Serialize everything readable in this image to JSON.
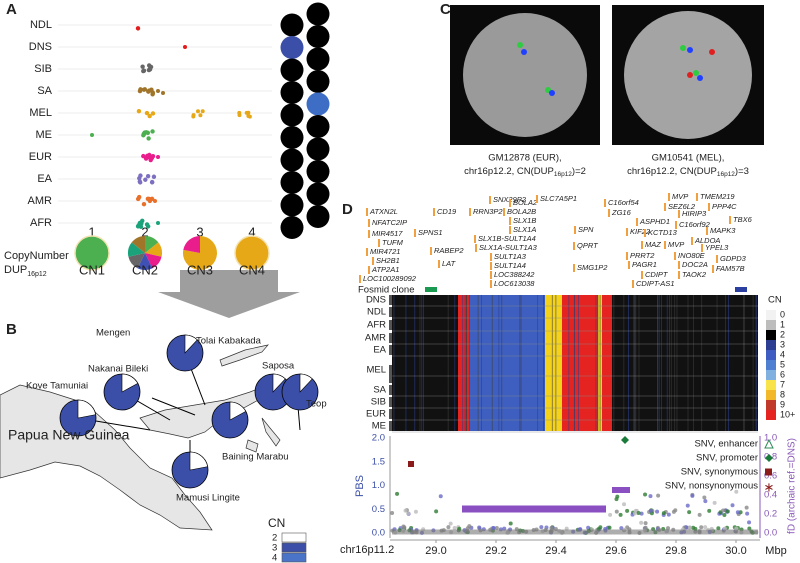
{
  "panel_a": {
    "label": "A",
    "populations": [
      "NDL",
      "DNS",
      "SIB",
      "SA",
      "MEL",
      "ME",
      "EUR",
      "EA",
      "AMR",
      "AFR"
    ],
    "columns": [
      "1",
      "2",
      "3",
      "4"
    ],
    "legend_title": "CopyNumber",
    "legend_subtitle": {
      "main": "DUP",
      "sub": "16p12"
    },
    "pie_labels": [
      "CN1",
      "CN2",
      "CN3",
      "CN4"
    ]
  },
  "panel_b": {
    "label": "B",
    "places": [
      "Mengen",
      "Tolai Kabakada",
      "Nakanai Bileki",
      "Kove Tamuniai",
      "Saposa",
      "Teop",
      "Baining Marabu",
      "Mamusi Lingite"
    ],
    "country": "Papua New Guinea",
    "legend_title": "CN",
    "legend_items": [
      "2",
      "3",
      "4"
    ]
  },
  "panel_c": {
    "label": "C",
    "images": [
      {
        "line1": "GM12878 (EUR),",
        "line2": [
          "chr16p12.2, CN(DUP",
          "16p12",
          ")=2"
        ]
      },
      {
        "line1": "GM10541 (MEL),",
        "line2": [
          "chr16p12.2, CN(DUP",
          "16p12",
          ")=3"
        ]
      }
    ]
  },
  "panel_d": {
    "label": "D",
    "genes": [
      "ATXN2L",
      "CD19",
      "NFATC2IP",
      "MIR4517",
      "SPNS1",
      "TUFM",
      "MIR4721",
      "SH2B1",
      "ATP2A1",
      "RABEP2",
      "LAT",
      "LOC100289092",
      "RRN3P2",
      "SNX29P2",
      "BOLA2",
      "BOLA2B",
      "SLX1B",
      "SLX1A",
      "SLX1B-SULT1A4",
      "SLX1A-SULT1A3",
      "SULT1A3",
      "SULT1A4",
      "LOC388242",
      "LOC613038",
      "SLC7A5P1",
      "SPN",
      "QPRT",
      "SMG1P2",
      "C16orf54",
      "ZG16",
      "KIF22",
      "MAZ",
      "ASPHD1",
      "KCTD13",
      "PRRT2",
      "PAGR1",
      "CDIPT",
      "CDIPT-AS1",
      "MVP",
      "SEZ6L2",
      "HIRIP3",
      "C16orf92",
      "MVP",
      "INO80E",
      "DOC2A",
      "TAOK2",
      "TMEM219",
      "PPP4C",
      "TBX6",
      "MAPK3",
      "ALDOA",
      "YPEL3",
      "GDPD3",
      "FAM57B"
    ],
    "fosmid_label": "Fosmid clone",
    "populations": [
      "DNS",
      "NDL",
      "AFR",
      "AMR",
      "EA",
      "MEL",
      "SA",
      "SIB",
      "EUR",
      "ME"
    ],
    "cn_legend_title": "CN",
    "cn_legend": [
      "0",
      "1",
      "2",
      "3",
      "4",
      "5",
      "6",
      "7",
      "8",
      "9",
      "10+"
    ],
    "y_label": "PBS",
    "yticks": [
      "0.0",
      "0.5",
      "1.0",
      "1.5",
      "2.0"
    ],
    "y2_label": "fD (archaic ref.=DNS)",
    "y2ticks": [
      "0.0",
      "0.2",
      "0.4",
      "0.6",
      "0.8",
      "1.0"
    ],
    "legend": [
      "SNV, enhancer",
      "SNV, promoter",
      "SNV, synonymous",
      "SNV, nonsynonymous"
    ],
    "x_label": "chr16p11.2",
    "xticks": [
      "29.0",
      "29.2",
      "29.4",
      "29.6",
      "29.8",
      "30.0"
    ],
    "x_unit": "Mbp"
  }
}
